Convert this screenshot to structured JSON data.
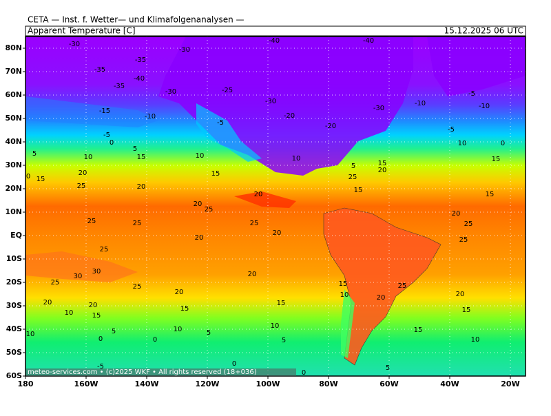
{
  "header": {
    "title": "CETA — Inst. f. Wetter— und Klimafolgenanalysen —",
    "subtitle": "Apparent Temperature [C]",
    "date": "15.12.2025 06 UTC"
  },
  "latitude_labels": [
    "80N",
    "70N",
    "60N",
    "50N",
    "40N",
    "30N",
    "20N",
    "10N",
    "EQ",
    "10S",
    "20S",
    "30S",
    "40S",
    "50S",
    "60S"
  ],
  "longitude_labels": [
    "180",
    "160W",
    "140W",
    "120W",
    "100W",
    "80W",
    "60W",
    "40W",
    "20W"
  ],
  "footer": "meteo-services.com • (c)2025 WKF • All rights reserved (18+036)",
  "contour_labels": [
    -30,
    -30,
    -40,
    -40,
    -35,
    -35,
    -40,
    -35,
    -30,
    -25,
    -30,
    -20,
    -30,
    -10,
    -5,
    -10,
    -10,
    -15,
    -5,
    -20,
    -5,
    -5,
    0,
    5,
    15,
    10,
    5,
    0,
    15,
    20,
    25,
    20,
    10,
    15,
    10,
    5,
    15,
    20,
    25,
    15,
    20,
    20,
    25,
    25,
    25,
    25,
    20,
    20,
    25,
    20,
    25,
    25,
    15,
    15,
    10,
    0,
    30,
    30,
    25,
    25,
    20,
    20,
    20,
    20,
    15,
    15,
    10,
    15,
    15,
    10,
    20,
    25,
    20,
    15,
    10,
    10,
    5,
    5,
    15,
    10,
    10,
    0,
    0,
    5,
    0,
    0,
    -5,
    5
  ]
}
